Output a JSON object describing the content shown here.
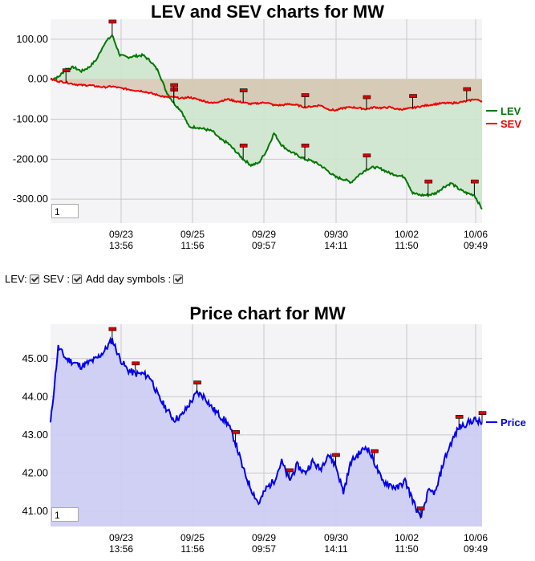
{
  "chart1": {
    "title": "LEV and SEV charts for MW",
    "zoom_value": "1"
  },
  "chart2": {
    "title": "Price chart for MW",
    "zoom_value": "1"
  },
  "controls": {
    "lev_label": "LEV:",
    "sev_label": "SEV :",
    "day_label": "Add day symbols :"
  },
  "x_ticks": [
    {
      "date": "09/23",
      "time": "13:56"
    },
    {
      "date": "09/25",
      "time": "11:56"
    },
    {
      "date": "09/29",
      "time": "09:57"
    },
    {
      "date": "09/30",
      "time": "14:11"
    },
    {
      "date": "10/02",
      "time": "11:50"
    },
    {
      "date": "10/06",
      "time": "09:49"
    }
  ],
  "colors": {
    "lev": "#007700",
    "sev": "#ee0000",
    "price": "#0000ee",
    "price_fill": "#ccccf5",
    "lev_fill": "#cde5cd",
    "sev_fill_pos": "#f2cccc",
    "sev_fill_neg": "#d7c5b3",
    "marker": "#dd0000"
  },
  "chart_data": [
    {
      "type": "line",
      "title": "LEV and SEV charts for MW",
      "ylim": [
        -360,
        150
      ],
      "y_ticks": [
        "100.00",
        "0.00",
        "-100.00",
        "-200.00",
        "-300.00"
      ],
      "x_tick_labels": [
        "09/23 13:56",
        "09/25 11:56",
        "09/29 09:57",
        "09/30 14:11",
        "10/02 11:50",
        "10/06 09:49"
      ],
      "legend": "right",
      "series": [
        {
          "name": "LEV",
          "values": [
            0,
            5,
            25,
            30,
            20,
            30,
            50,
            90,
            110,
            60,
            55,
            58,
            60,
            45,
            20,
            -30,
            -60,
            -80,
            -120,
            -120,
            -125,
            -130,
            -150,
            -160,
            -180,
            -200,
            -215,
            -210,
            -180,
            -135,
            -165,
            -180,
            -190,
            -200,
            -205,
            -215,
            -230,
            -245,
            -250,
            -258,
            -240,
            -225,
            -220,
            -225,
            -235,
            -240,
            -245,
            -285,
            -290,
            -290,
            -285,
            -270,
            -260,
            -275,
            -285,
            -290,
            -325
          ]
        },
        {
          "name": "SEV",
          "values": [
            0,
            -5,
            -8,
            -12,
            -15,
            -15,
            -18,
            -20,
            -18,
            -22,
            -25,
            -28,
            -30,
            -35,
            -40,
            -45,
            -45,
            -48,
            -45,
            -50,
            -55,
            -60,
            -55,
            -50,
            -55,
            -58,
            -62,
            -60,
            -58,
            -65,
            -65,
            -62,
            -65,
            -70,
            -68,
            -65,
            -75,
            -78,
            -72,
            -70,
            -72,
            -75,
            -70,
            -72,
            -70,
            -75,
            -75,
            -72,
            -68,
            -65,
            -62,
            -60,
            -60,
            -58,
            -55,
            -50,
            -55
          ]
        }
      ]
    },
    {
      "type": "area",
      "title": "Price chart for MW",
      "ylim": [
        40.6,
        45.9
      ],
      "y_ticks": [
        "45.00",
        "44.00",
        "43.00",
        "42.00",
        "41.00"
      ],
      "x_tick_labels": [
        "09/23 13:56",
        "09/25 11:56",
        "09/29 09:57",
        "09/30 14:11",
        "10/02 11:50",
        "10/06 09:49"
      ],
      "legend": "right",
      "series": [
        {
          "name": "Price",
          "values": [
            43.3,
            45.3,
            45.0,
            44.9,
            44.8,
            44.9,
            45.0,
            45.2,
            45.5,
            45.0,
            44.7,
            44.6,
            44.6,
            44.5,
            44.0,
            43.7,
            43.4,
            43.5,
            43.8,
            44.1,
            44.0,
            43.7,
            43.5,
            43.3,
            42.8,
            42.1,
            41.6,
            41.2,
            41.6,
            41.8,
            42.3,
            41.8,
            42.2,
            42.0,
            42.3,
            42.1,
            42.5,
            42.2,
            41.5,
            42.3,
            42.5,
            42.7,
            42.3,
            41.8,
            41.7,
            41.6,
            41.8,
            41.3,
            40.8,
            41.5,
            41.5,
            42.3,
            42.8,
            43.2,
            43.3,
            43.4,
            43.3
          ]
        }
      ]
    }
  ]
}
